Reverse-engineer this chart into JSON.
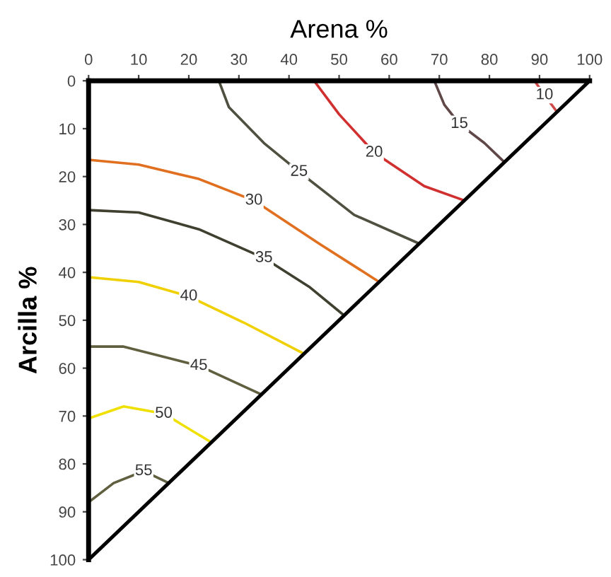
{
  "chart_data": {
    "type": "line",
    "xlabel": "Arena %",
    "ylabel": "Arcilla %",
    "xlim": [
      0,
      100
    ],
    "ylim": [
      100,
      0
    ],
    "xticks": [
      0,
      10,
      20,
      30,
      40,
      50,
      60,
      70,
      80,
      90,
      100
    ],
    "yticks": [
      0,
      10,
      20,
      30,
      40,
      50,
      60,
      70,
      80,
      90,
      100
    ],
    "grid": false,
    "legend": false,
    "marker": "none",
    "line_style": "solid",
    "series": [
      {
        "name": "10",
        "color": "#d04848",
        "x": [
          89,
          91,
          93.5
        ],
        "values": [
          0,
          3,
          6.5
        ]
      },
      {
        "name": "15",
        "color": "#604848",
        "x": [
          69,
          71,
          74,
          79,
          83
        ],
        "values": [
          0,
          5,
          9,
          13,
          17
        ]
      },
      {
        "name": "20",
        "color": "#d03030",
        "x": [
          45,
          50,
          57,
          67,
          75
        ],
        "values": [
          0,
          7,
          15,
          22,
          25
        ]
      },
      {
        "name": "25",
        "color": "#505040",
        "x": [
          26,
          28,
          35,
          42,
          53,
          66
        ],
        "values": [
          0,
          5.5,
          13,
          19,
          28,
          34
        ]
      },
      {
        "name": "30",
        "color": "#e07020",
        "x": [
          0,
          10,
          22,
          33,
          46,
          58
        ],
        "values": [
          16.5,
          17.5,
          20.5,
          25,
          34,
          42
        ]
      },
      {
        "name": "35",
        "color": "#404030",
        "x": [
          0,
          10,
          22,
          35,
          44,
          51
        ],
        "values": [
          27,
          27.5,
          31,
          37,
          43,
          49
        ]
      },
      {
        "name": "40",
        "color": "#f0d000",
        "x": [
          0,
          10,
          20,
          31,
          43
        ],
        "values": [
          41,
          42,
          45,
          50.5,
          57
        ]
      },
      {
        "name": "45",
        "color": "#606040",
        "x": [
          0,
          7,
          22,
          34.5
        ],
        "values": [
          55.5,
          55.5,
          59.5,
          65.5
        ]
      },
      {
        "name": "50",
        "color": "#f0e000",
        "x": [
          0,
          7,
          15,
          24.5
        ],
        "values": [
          70.5,
          68,
          69.5,
          75.5
        ]
      },
      {
        "name": "55",
        "color": "#606040",
        "x": [
          0,
          5,
          11,
          16
        ],
        "values": [
          88,
          84,
          81.5,
          84
        ]
      },
      {
        "color": "#000000",
        "x": [
          0,
          100
        ],
        "values": [
          100,
          0
        ]
      }
    ]
  }
}
